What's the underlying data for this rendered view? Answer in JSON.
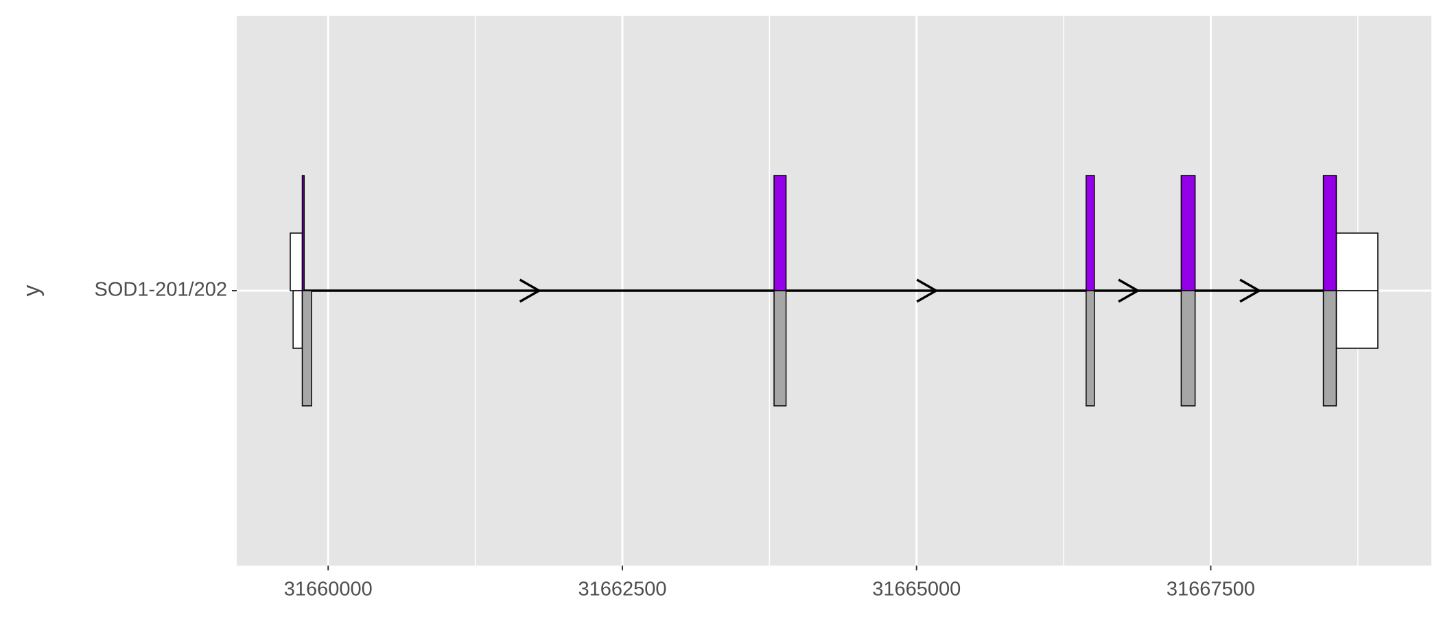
{
  "chart_data": {
    "type": "transcript",
    "ylabel": "y",
    "categories": [
      "SOD1-201/202"
    ],
    "xlim": [
      31659223,
      31669375
    ],
    "xticks": [
      31660000,
      31662500,
      31665000,
      31667500
    ],
    "xminorticks": [
      31661250,
      31663750,
      31666250,
      31668750
    ],
    "grid": true,
    "intron_color": "#000000",
    "transcripts": [
      {
        "direction": "up",
        "cds_color": "#9400e8",
        "utr_color": "#ffffff",
        "utr_starts": [
          31659678,
          31668567
        ],
        "utr_ends": [
          31659780,
          31668920
        ],
        "cds_starts": [
          31659780,
          31663789,
          31666441,
          31667249,
          31668457
        ],
        "cds_ends": [
          31659796,
          31663891,
          31666511,
          31667367,
          31668567
        ]
      },
      {
        "direction": "down",
        "cds_color": "#a6a6a6",
        "utr_color": "#ffffff",
        "utr_starts": [
          31659702,
          31668567
        ],
        "utr_ends": [
          31659780,
          31668920
        ],
        "cds_starts": [
          31659780,
          31663789,
          31666441,
          31667249,
          31668457
        ],
        "cds_ends": [
          31659859,
          31663891,
          31666511,
          31667367,
          31668567
        ]
      }
    ]
  }
}
